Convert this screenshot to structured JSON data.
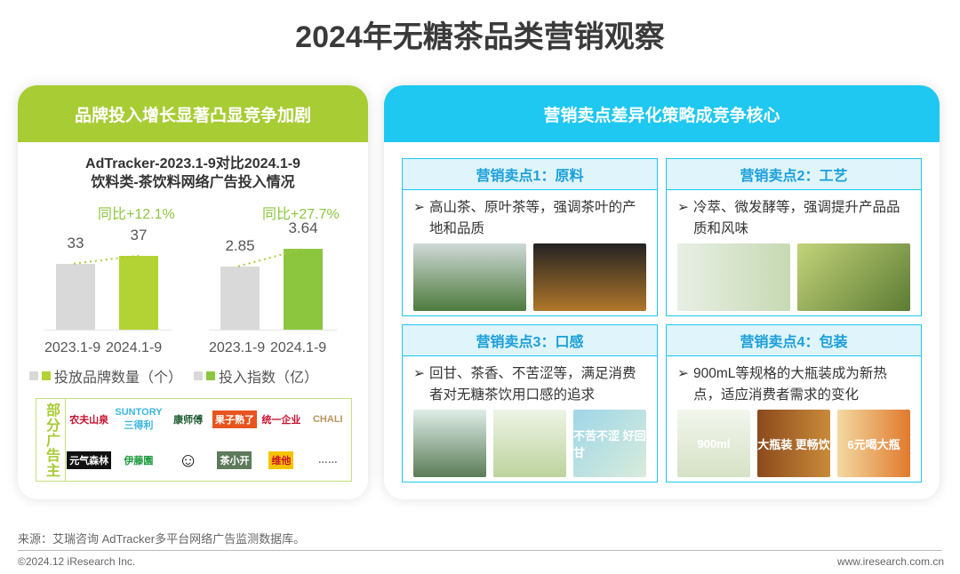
{
  "title": "2024年无糖茶品类营销观察",
  "left": {
    "header": "品牌投入增长显著凸显竞争加剧",
    "chart_title_1": "AdTracker-2023.1-9对比2024.1-9",
    "chart_title_2": "饮料类-茶饮料网络广告投入情况",
    "advertisers_label": "部分广告主",
    "advertisers": [
      "农夫山泉",
      "SUNTORY 三得利",
      "康师傅",
      "果子熟了",
      "统一企业",
      "CHALI",
      "元气森林",
      "伊藤園",
      "",
      "茶小开",
      "维他",
      "……"
    ]
  },
  "chart_data": [
    {
      "type": "bar",
      "categories": [
        "2023.1-9",
        "2024.1-9"
      ],
      "values": [
        33,
        37
      ],
      "annotation": "同比+12.1%",
      "legend": "投放品牌数量（个）",
      "colors": [
        "#d9d9d9",
        "#b3d334"
      ]
    },
    {
      "type": "bar",
      "categories": [
        "2023.1-9",
        "2024.1-9"
      ],
      "values": [
        2.85,
        3.64
      ],
      "annotation": "同比+27.7%",
      "legend": "投入指数（亿）",
      "colors": [
        "#d9d9d9",
        "#8cc63f"
      ]
    }
  ],
  "right": {
    "header": "营销卖点差异化策略成竞争核心",
    "boxes": [
      {
        "title": "营销卖点1：原料",
        "text": "高山茶、原叶茶等，强调茶叶的产地和品质",
        "images": [
          "",
          ""
        ]
      },
      {
        "title": "营销卖点2：工艺",
        "text": "冷萃、微发酵等，强调提升产品品质和风味",
        "images": [
          "",
          ""
        ]
      },
      {
        "title": "营销卖点3：口感",
        "text": "回甘、茶香、不苦涩等，满足消费者对无糖茶饮用口感的追求",
        "images": [
          "",
          "",
          "不苦不涩 好回甘"
        ]
      },
      {
        "title": "营销卖点4：包装",
        "text": "900mL等规格的大瓶装成为新热点，适应消费者需求的变化",
        "images": [
          "900ml",
          "大瓶装 更畅饮",
          "6元喝大瓶"
        ]
      }
    ]
  },
  "footer": {
    "source": "来源：艾瑞咨询 AdTracker多平台网络广告监测数据库。",
    "copyright": "©2024.12 iResearch Inc.",
    "website": "www.iresearch.com.cn"
  }
}
